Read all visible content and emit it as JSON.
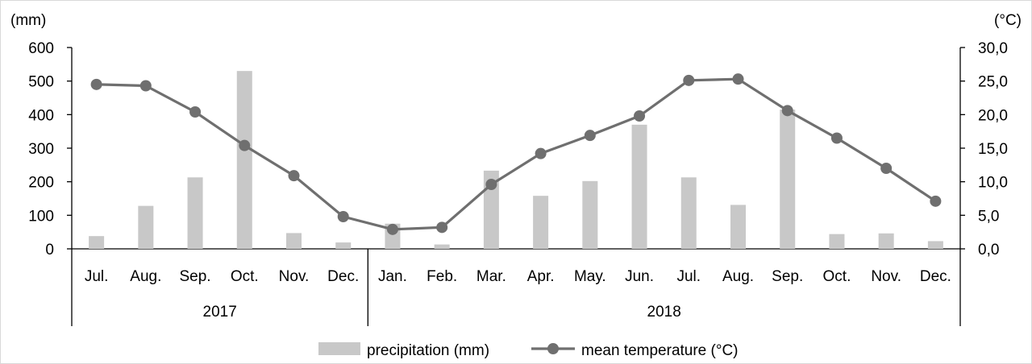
{
  "chart_data": {
    "type": "bar+line",
    "left_unit": "(mm)",
    "right_unit": "(°C)",
    "left_ticks": [
      "0",
      "100",
      "200",
      "300",
      "400",
      "500",
      "600"
    ],
    "right_ticks": [
      "0,0",
      "5,0",
      "10,0",
      "15,0",
      "20,0",
      "25,0",
      "30,0"
    ],
    "ylim_left": [
      0,
      600
    ],
    "ylim_right": [
      0,
      30
    ],
    "categories": [
      "Jul.",
      "Aug.",
      "Sep.",
      "Oct.",
      "Nov.",
      "Dec.",
      "Jan.",
      "Feb.",
      "Mar.",
      "Apr.",
      "May.",
      "Jun.",
      "Jul.",
      "Aug.",
      "Sep.",
      "Oct.",
      "Nov.",
      "Dec."
    ],
    "groups": [
      {
        "label": "2017",
        "count": 6
      },
      {
        "label": "2018",
        "count": 12
      }
    ],
    "series": [
      {
        "name": "precipitation (mm)",
        "kind": "bar",
        "axis": "left",
        "color": "#c8c8c8",
        "values": [
          38,
          128,
          213,
          530,
          47,
          19,
          75,
          13,
          233,
          158,
          202,
          370,
          213,
          131,
          415,
          44,
          46,
          23
        ]
      },
      {
        "name": "mean temperature (°C)",
        "kind": "line",
        "axis": "right",
        "color": "#6f6f6f",
        "values": [
          24.5,
          24.3,
          20.4,
          15.4,
          10.9,
          4.8,
          2.9,
          3.2,
          9.6,
          14.2,
          16.9,
          19.8,
          25.1,
          25.3,
          20.6,
          16.5,
          12.0,
          7.1
        ]
      }
    ],
    "grid": false,
    "legend_position": "bottom"
  }
}
